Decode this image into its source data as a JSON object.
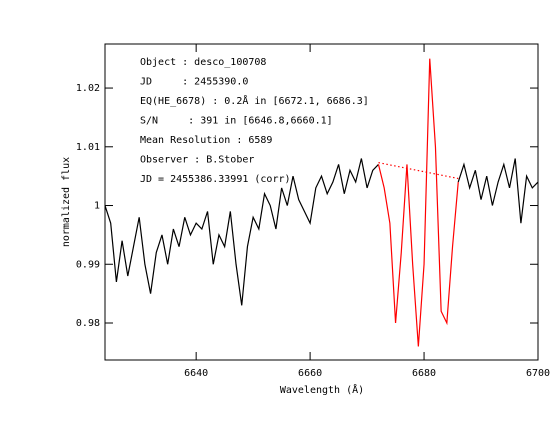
{
  "chart_data": {
    "type": "line",
    "xlabel": "Wavelength (Å)",
    "ylabel": "normalized flux",
    "annotations": [
      "Object : desco_100708",
      "JD     : 2455390.0",
      "EQ(HE_6678) : 0.2Å in [6672.1, 6686.3]",
      "S/N     : 391 in [6646.8,6660.1]",
      "Mean Resolution : 6589",
      "Observer : B.Stober",
      "JD = 2455386.33991 (corr)"
    ],
    "xlim": [
      6624,
      6700
    ],
    "xticks": [
      6640,
      6660,
      6680,
      6700
    ],
    "ylim": [
      0.9737,
      1.0275
    ],
    "yticks": [
      0.98,
      0.99,
      1,
      1.01,
      1.02
    ],
    "series": [
      {
        "color": "#000000",
        "x": [
          6624,
          6625,
          6626,
          6627,
          6628,
          6629,
          6630,
          6631,
          6632,
          6633,
          6634,
          6635,
          6636,
          6637,
          6638,
          6639,
          6640,
          6641,
          6642,
          6643,
          6644,
          6645,
          6646,
          6647,
          6648,
          6649,
          6650,
          6651,
          6652,
          6653,
          6654,
          6655,
          6656,
          6657,
          6658,
          6659,
          6660,
          6661,
          6662,
          6663,
          6664,
          6665,
          6666,
          6667,
          6668,
          6669,
          6670,
          6671,
          6672,
          6673,
          6674,
          6675,
          6676,
          6677,
          6678,
          6679,
          6680,
          6681,
          6682,
          6683,
          6684,
          6685,
          6686,
          6687,
          6688,
          6689,
          6690,
          6691,
          6692,
          6693,
          6694,
          6695,
          6696,
          6697,
          6698,
          6699,
          6700
        ],
        "values": [
          1.0,
          0.997,
          0.987,
          0.994,
          0.988,
          0.993,
          0.998,
          0.99,
          0.985,
          0.992,
          0.995,
          0.99,
          0.996,
          0.993,
          0.998,
          0.995,
          0.997,
          0.996,
          0.999,
          0.99,
          0.995,
          0.993,
          0.999,
          0.99,
          0.983,
          0.993,
          0.998,
          0.996,
          1.002,
          1.0,
          0.996,
          1.003,
          1.0,
          1.005,
          1.001,
          0.999,
          0.997,
          1.003,
          1.005,
          1.002,
          1.004,
          1.007,
          1.002,
          1.006,
          1.004,
          1.008,
          1.003,
          1.006,
          1.007,
          null,
          null,
          null,
          null,
          null,
          null,
          null,
          null,
          null,
          null,
          null,
          null,
          null,
          1.004,
          1.007,
          1.003,
          1.006,
          1.001,
          1.005,
          1.0,
          1.004,
          1.007,
          1.003,
          1.008,
          0.997,
          1.005,
          1.003,
          1.004
        ]
      },
      {
        "color": "#ff0000",
        "x": [
          6672,
          6673,
          6674,
          6675,
          6676,
          6677,
          6678,
          6679,
          6680,
          6681,
          6682,
          6683,
          6684,
          6685,
          6686
        ],
        "values": [
          1.007,
          1.003,
          0.997,
          0.98,
          0.992,
          1.007,
          0.99,
          0.976,
          0.99,
          1.025,
          1.01,
          0.982,
          0.98,
          0.993,
          1.004
        ]
      }
    ],
    "continuum": {
      "color": "#ff0000",
      "dotted": true,
      "x": [
        6672,
        6686
      ],
      "values": [
        1.0073,
        1.0046
      ]
    }
  }
}
